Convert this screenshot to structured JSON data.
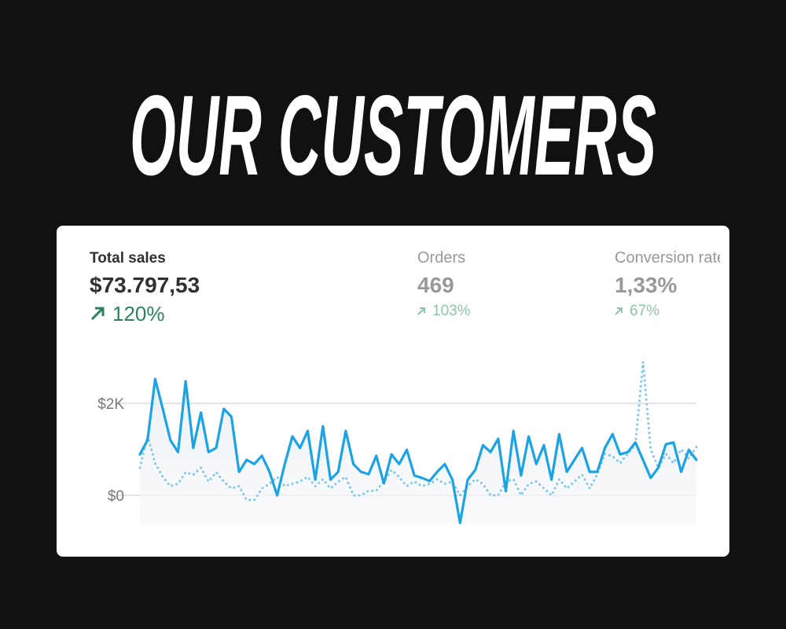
{
  "header": {
    "title": "OUR CUSTOMERS"
  },
  "metrics": [
    {
      "label": "Total sales",
      "value": "$73.797,53",
      "change": "120%"
    },
    {
      "label": "Orders",
      "value": "469",
      "change": "103%"
    },
    {
      "label": "Conversion rate",
      "value": "1,33%",
      "change": "67%"
    }
  ],
  "chart_data": {
    "type": "line",
    "ylim": [
      -650,
      3000
    ],
    "yticks": [
      {
        "value": 0,
        "label": "$0"
      },
      {
        "value": 2000,
        "label": "$2K"
      }
    ],
    "grid": true,
    "series": [
      {
        "color": "#1ba3e4",
        "style": "solid",
        "values": [
          890,
          1200,
          2530,
          1880,
          1200,
          940,
          2480,
          1030,
          1800,
          940,
          1030,
          1880,
          1710,
          510,
          770,
          680,
          860,
          510,
          0,
          680,
          1280,
          1030,
          1400,
          340,
          1500,
          340,
          510,
          1400,
          680,
          510,
          460,
          860,
          260,
          890,
          680,
          990,
          430,
          380,
          310,
          510,
          680,
          340,
          -600,
          340,
          550,
          1090,
          940,
          1230,
          90,
          1400,
          430,
          1280,
          680,
          1090,
          340,
          1330,
          510,
          770,
          1030,
          510,
          510,
          1030,
          1330,
          890,
          940,
          1150,
          770,
          380,
          600,
          1110,
          1150,
          510,
          990,
          770
        ]
      },
      {
        "color": "#7ec8ea",
        "style": "dotted",
        "values": [
          600,
          1300,
          700,
          400,
          200,
          250,
          500,
          450,
          600,
          300,
          500,
          300,
          150,
          200,
          -100,
          -100,
          150,
          250,
          400,
          200,
          250,
          300,
          400,
          200,
          350,
          150,
          300,
          400,
          0,
          0,
          100,
          100,
          300,
          550,
          400,
          200,
          300,
          200,
          250,
          350,
          250,
          300,
          0,
          200,
          350,
          250,
          0,
          0,
          300,
          350,
          0,
          250,
          300,
          150,
          0,
          350,
          150,
          300,
          450,
          150,
          450,
          900,
          850,
          700,
          900,
          1100,
          2900,
          1000,
          600,
          900,
          700,
          1000,
          800,
          1050
        ]
      }
    ]
  }
}
